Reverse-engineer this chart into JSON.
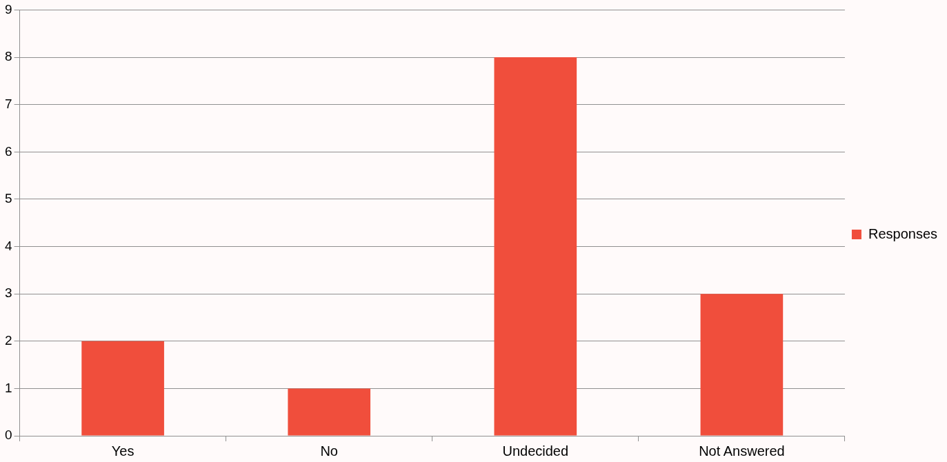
{
  "chart_data": {
    "type": "bar",
    "categories": [
      "Yes",
      "No",
      "Undecided",
      "Not Answered"
    ],
    "series": [
      {
        "name": "Responses",
        "color": "#f04e3c",
        "values": [
          2,
          1,
          8,
          3
        ]
      }
    ],
    "ylim": [
      0,
      9
    ],
    "yticks": [
      0,
      1,
      2,
      3,
      4,
      5,
      6,
      7,
      8,
      9
    ],
    "grid": "y",
    "legend": "right"
  }
}
